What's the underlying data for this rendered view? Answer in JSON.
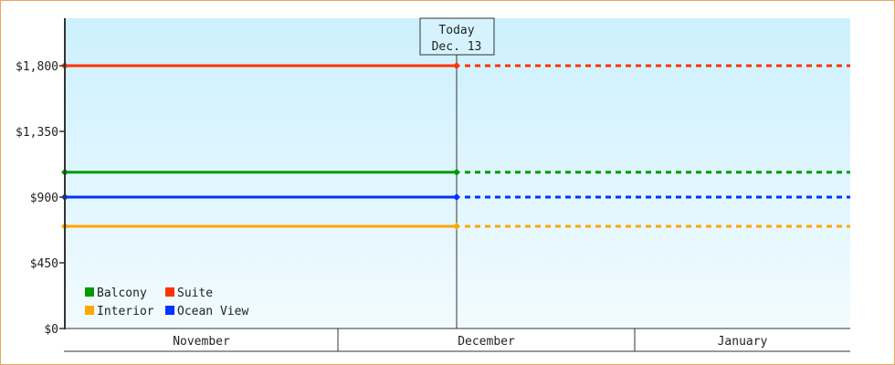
{
  "chart_data": {
    "type": "line",
    "title": "",
    "xlabel": "",
    "ylabel": "",
    "ylim": [
      0,
      2115
    ],
    "yticks": [
      0,
      450,
      900,
      1350,
      1800
    ],
    "ytick_labels": [
      "$0",
      "$450",
      "$900",
      "$1,350",
      "$1,800"
    ],
    "x_months": [
      "November",
      "December",
      "January"
    ],
    "today_marker": {
      "line1": "Today",
      "line2": "Dec. 13"
    },
    "grid": false,
    "legend_position": "bottom-left",
    "series": [
      {
        "name": "Balcony",
        "color": "#009900",
        "value": 1070
      },
      {
        "name": "Suite",
        "color": "#ff3300",
        "value": 1800
      },
      {
        "name": "Interior",
        "color": "#ffa500",
        "value": 700
      },
      {
        "name": "Ocean View",
        "color": "#0033ff",
        "value": 900
      }
    ],
    "note_style": "solid up to today, dotted after today"
  }
}
